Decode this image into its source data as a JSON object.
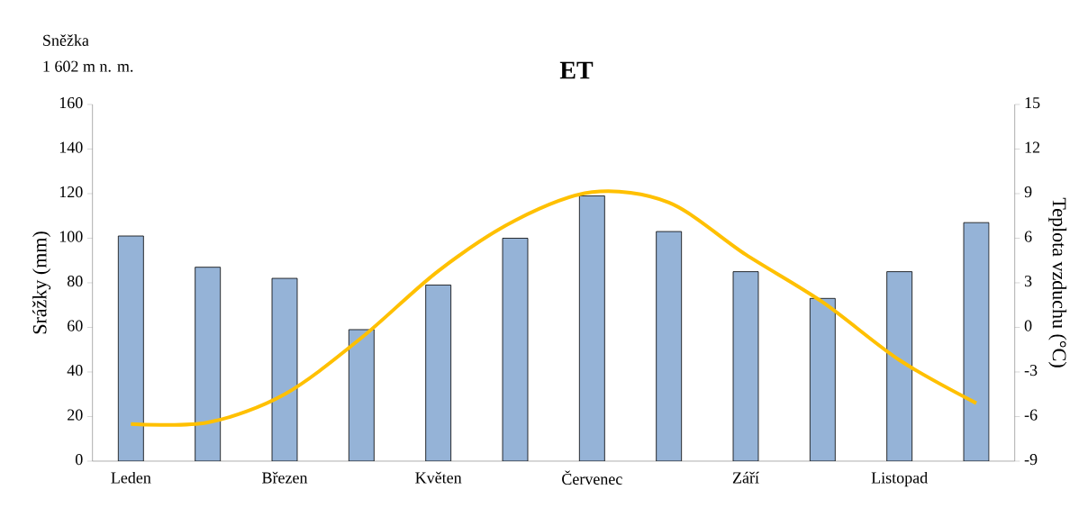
{
  "chart_data": {
    "type": "bar",
    "title": "ET",
    "annotations": [
      "Sněžka",
      "1 602 m n. m."
    ],
    "ylabel": "Srážky (mm)",
    "y2label": "Teplota vzduchu (°C)",
    "categories": [
      "Leden",
      null,
      "Březen",
      null,
      "Květen",
      null,
      "Červenec",
      null,
      "Září",
      null,
      "Listopad",
      null
    ],
    "series": [
      {
        "color": "#95b3d7",
        "values": [
          101,
          87,
          82,
          59,
          79,
          100,
          119,
          103,
          85,
          73,
          85,
          107
        ]
      },
      {
        "type": "line",
        "axis": "y2",
        "color": "#ffc000",
        "values": [
          -6.5,
          -6.4,
          -4.5,
          -0.7,
          3.8,
          7.2,
          9.1,
          8.4,
          4.9,
          1.7,
          -2.2,
          -5.1
        ]
      }
    ],
    "ylim": [
      0,
      160
    ],
    "yticks": [
      0,
      20,
      40,
      60,
      80,
      100,
      120,
      140,
      160
    ],
    "y2lim": [
      -9,
      15
    ],
    "y2ticks": [
      -9,
      -6,
      -3,
      0,
      3,
      6,
      9,
      12,
      15
    ],
    "grid": false
  }
}
